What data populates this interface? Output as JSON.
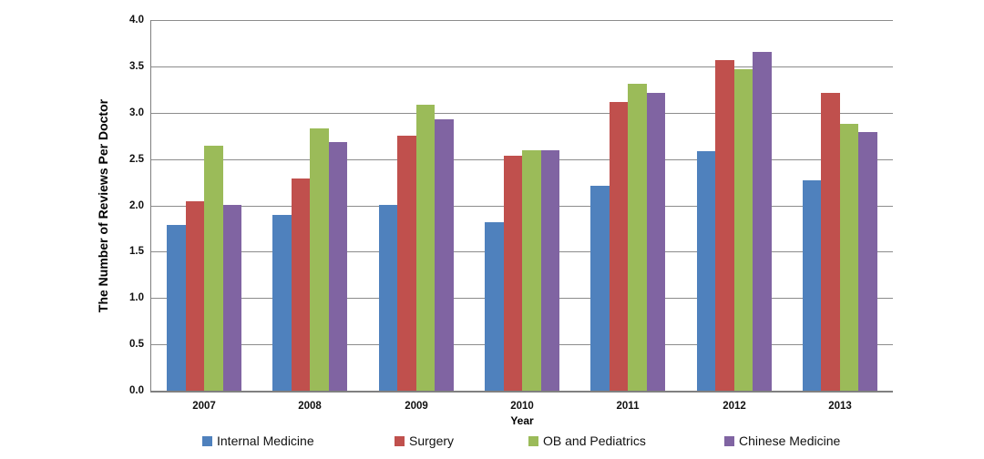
{
  "chart_data": {
    "type": "bar",
    "title": "",
    "xlabel": "Year",
    "ylabel": "The Number of Reviews Per Doctor",
    "categories": [
      "2007",
      "2008",
      "2009",
      "2010",
      "2011",
      "2012",
      "2013"
    ],
    "series": [
      {
        "name": "Internal Medicine",
        "color": "#4F81BD",
        "values": [
          1.79,
          1.9,
          2.0,
          1.82,
          2.21,
          2.58,
          2.27
        ]
      },
      {
        "name": "Surgery",
        "color": "#C0504D",
        "values": [
          2.04,
          2.29,
          2.75,
          2.54,
          3.12,
          3.57,
          3.21
        ]
      },
      {
        "name": "OB and Pediatrics",
        "color": "#9BBB59",
        "values": [
          2.64,
          2.83,
          3.09,
          2.59,
          3.31,
          3.47,
          2.88
        ]
      },
      {
        "name": "Chinese Medicine",
        "color": "#8064A2",
        "values": [
          2.0,
          2.68,
          2.93,
          2.59,
          3.21,
          3.66,
          2.79
        ]
      }
    ],
    "ylim": [
      0.0,
      4.0
    ],
    "ytick_labels": [
      "0.0",
      "0.5",
      "1.0",
      "1.5",
      "2.0",
      "2.5",
      "3.0",
      "3.5",
      "4.0"
    ],
    "grid": true,
    "legend_position": "bottom",
    "gridline_color": "#8C8C8C",
    "axis_color": "#808080",
    "background_color": "#FFFFFF"
  }
}
